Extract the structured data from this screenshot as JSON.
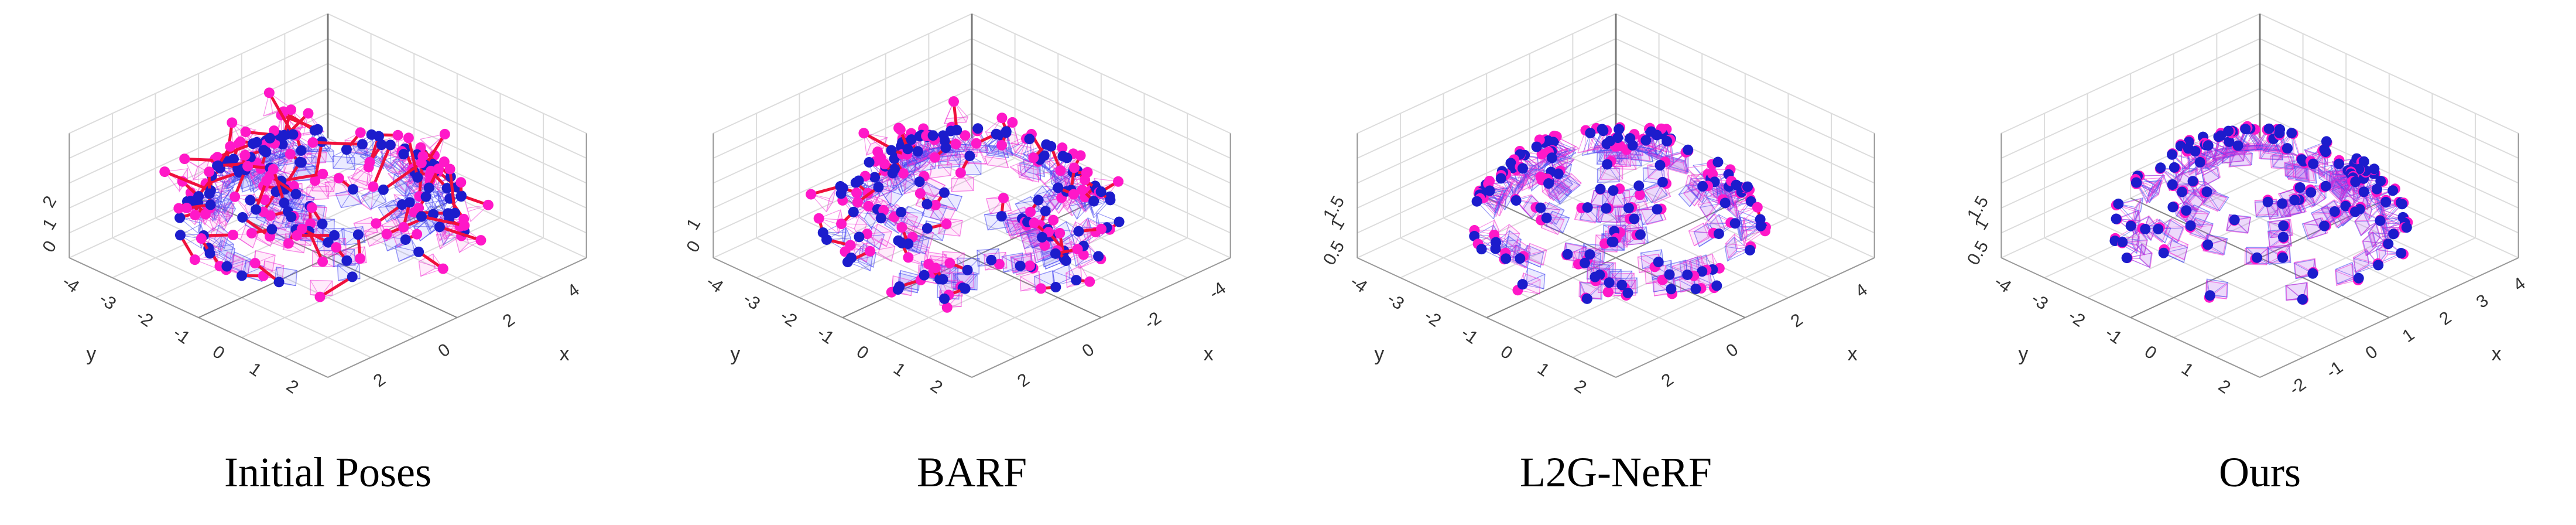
{
  "panels": [
    {
      "caption": "Initial Poses",
      "y_ticks": [
        "-4",
        "-3",
        "-2",
        "-1",
        "0",
        "1",
        "2"
      ],
      "x_ticks": [
        "4",
        "2",
        "0",
        "2"
      ],
      "z_ticks": [
        "0",
        "1",
        "2"
      ],
      "x_label": "x",
      "y_label": "y"
    },
    {
      "caption": "BARF",
      "y_ticks": [
        "-4",
        "-3",
        "-2",
        "-1",
        "0",
        "1",
        "2"
      ],
      "x_ticks": [
        "-4",
        "-2",
        "0",
        "2"
      ],
      "z_ticks": [
        "0",
        "1"
      ],
      "x_label": "x",
      "y_label": "y"
    },
    {
      "caption": "L2G-NeRF",
      "y_ticks": [
        "-4",
        "-3",
        "-2",
        "-1",
        "0",
        "1",
        "2"
      ],
      "x_ticks": [
        "4",
        "2",
        "0",
        "2"
      ],
      "z_ticks": [
        "0.5",
        "1",
        "1.5"
      ],
      "x_label": "x",
      "y_label": "y"
    },
    {
      "caption": "Ours",
      "y_ticks": [
        "-4",
        "-3",
        "-2",
        "-1",
        "0",
        "1",
        "2"
      ],
      "x_ticks": [
        "4",
        "3",
        "2",
        "1",
        "0",
        "-1",
        "-2"
      ],
      "z_ticks": [
        "0.5",
        "1",
        "1.5"
      ],
      "x_label": "x",
      "y_label": "y"
    }
  ]
}
